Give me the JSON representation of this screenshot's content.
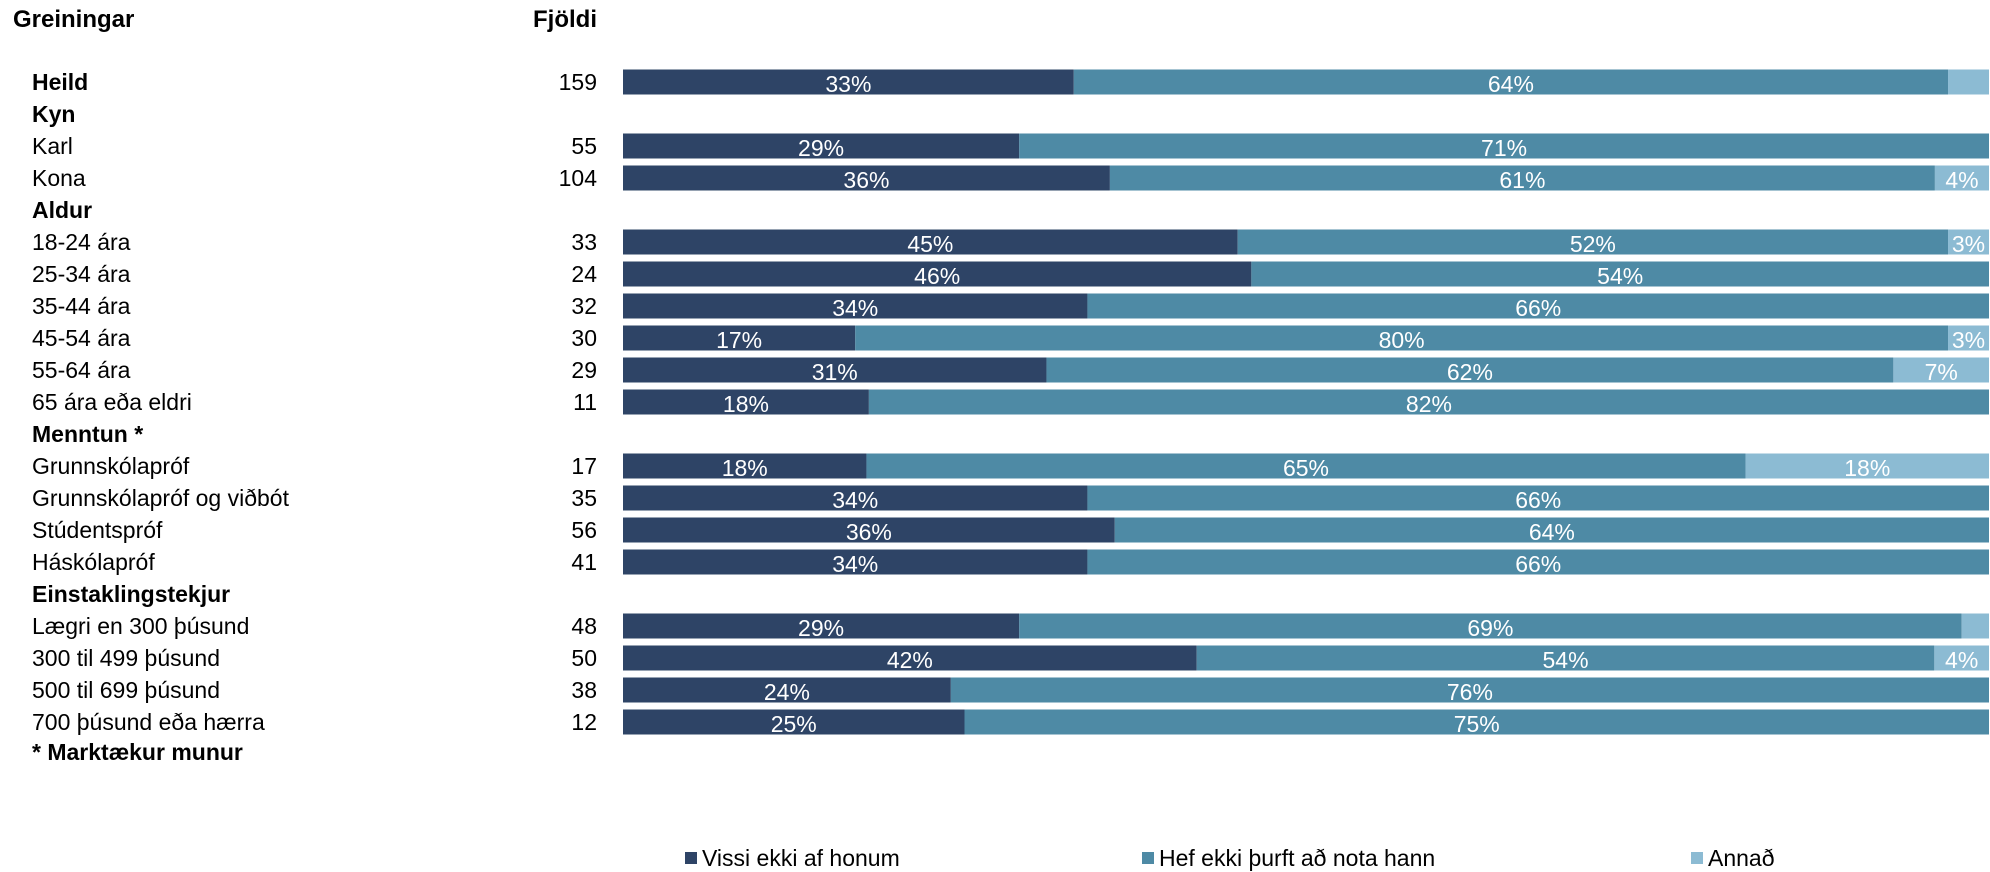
{
  "header": {
    "group_title": "Greiningar",
    "count_title": "Fjöldi"
  },
  "footnote": "* Marktækur munur",
  "colors": {
    "s1": "#2e4466",
    "s2": "#4e8aa5",
    "s3": "#8cbbd3"
  },
  "chart_data": {
    "type": "bar",
    "orientation": "horizontal",
    "stacked": true,
    "value_unit": "percent",
    "xlim": [
      0,
      100
    ],
    "legend_position": "bottom",
    "grid": false,
    "series": [
      {
        "name": "Vissi ekki af honum",
        "color": "#2e4466"
      },
      {
        "name": "Hef ekki þurft að nota hann",
        "color": "#4e8aa5"
      },
      {
        "name": "Annað",
        "color": "#8cbbd3"
      }
    ],
    "rows": [
      {
        "label": "Heild",
        "bold": true,
        "n": "159",
        "values": [
          33,
          64,
          3
        ],
        "labels": [
          "33%",
          "64%",
          ""
        ]
      },
      {
        "label": "Kyn",
        "bold": true
      },
      {
        "label": "Karl",
        "n": "55",
        "values": [
          29,
          71,
          0
        ],
        "labels": [
          "29%",
          "71%",
          ""
        ]
      },
      {
        "label": "Kona",
        "n": "104",
        "values": [
          36,
          61,
          4
        ],
        "labels": [
          "36%",
          "61%",
          "4%"
        ]
      },
      {
        "label": "Aldur",
        "bold": true
      },
      {
        "label": "18-24 ára",
        "n": "33",
        "values": [
          45,
          52,
          3
        ],
        "labels": [
          "45%",
          "52%",
          "3%"
        ]
      },
      {
        "label": "25-34 ára",
        "n": "24",
        "values": [
          46,
          54,
          0
        ],
        "labels": [
          "46%",
          "54%",
          ""
        ]
      },
      {
        "label": "35-44 ára",
        "n": "32",
        "values": [
          34,
          66,
          0
        ],
        "labels": [
          "34%",
          "66%",
          ""
        ]
      },
      {
        "label": "45-54 ára",
        "n": "30",
        "values": [
          17,
          80,
          3
        ],
        "labels": [
          "17%",
          "80%",
          "3%"
        ]
      },
      {
        "label": "55-64 ára",
        "n": "29",
        "values": [
          31,
          62,
          7
        ],
        "labels": [
          "31%",
          "62%",
          "7%"
        ]
      },
      {
        "label": "65 ára eða eldri",
        "n": "11",
        "values": [
          18,
          82,
          0
        ],
        "labels": [
          "18%",
          "82%",
          ""
        ]
      },
      {
        "label": "Menntun *",
        "bold": true
      },
      {
        "label": "Grunnskólapróf",
        "n": "17",
        "values": [
          18,
          65,
          18
        ],
        "labels": [
          "18%",
          "65%",
          "18%"
        ]
      },
      {
        "label": "Grunnskólapróf og viðbót",
        "n": "35",
        "values": [
          34,
          66,
          0
        ],
        "labels": [
          "34%",
          "66%",
          ""
        ]
      },
      {
        "label": "Stúdentspróf",
        "n": "56",
        "values": [
          36,
          64,
          0
        ],
        "labels": [
          "36%",
          "64%",
          ""
        ]
      },
      {
        "label": "Háskólapróf",
        "n": "41",
        "values": [
          34,
          66,
          0
        ],
        "labels": [
          "34%",
          "66%",
          ""
        ]
      },
      {
        "label": "Einstaklingstekjur",
        "bold": true
      },
      {
        "label": "Lægri en 300 þúsund",
        "n": "48",
        "values": [
          29,
          69,
          2
        ],
        "labels": [
          "29%",
          "69%",
          ""
        ]
      },
      {
        "label": "300 til 499 þúsund",
        "n": "50",
        "values": [
          42,
          54,
          4
        ],
        "labels": [
          "42%",
          "54%",
          "4%"
        ]
      },
      {
        "label": "500 til 699 þúsund",
        "n": "38",
        "values": [
          24,
          76,
          0
        ],
        "labels": [
          "24%",
          "76%",
          ""
        ]
      },
      {
        "label": "700 þúsund eða hærra",
        "n": "12",
        "values": [
          25,
          75,
          0
        ],
        "labels": [
          "25%",
          "75%",
          ""
        ]
      }
    ]
  }
}
